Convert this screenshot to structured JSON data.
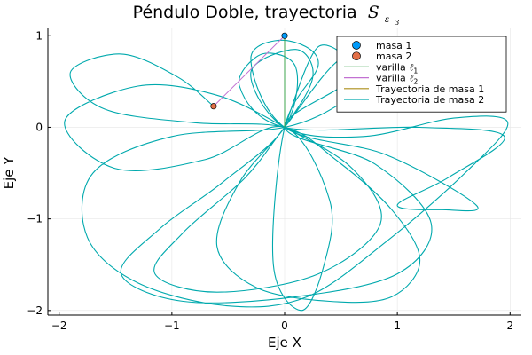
{
  "chart_data": {
    "type": "line",
    "title": "Péndulo Doble, trayectoria",
    "title_math": {
      "symbol": "S",
      "subscript": "ε",
      "subsubscript": "3"
    },
    "xlabel": "Eje X",
    "ylabel": "Eje Y",
    "xlim": [
      -2.1,
      2.1
    ],
    "ylim": [
      -2.05,
      1.08
    ],
    "xticks": [
      -2,
      -1,
      0,
      1,
      2
    ],
    "yticks": [
      -2,
      -1,
      0,
      1
    ],
    "xtick_labels": [
      "−2",
      "−1",
      "0",
      "1",
      "2"
    ],
    "ytick_labels": [
      "−2",
      "−1",
      "0",
      "1"
    ],
    "grid": true,
    "legend_position": "top-right",
    "legend": [
      {
        "key": "m1",
        "label": "masa 1",
        "kind": "marker"
      },
      {
        "key": "m2",
        "label": "masa 2",
        "kind": "marker"
      },
      {
        "key": "l1",
        "label": "varilla",
        "math": "ℓ",
        "sub": "1",
        "kind": "line"
      },
      {
        "key": "l2",
        "label": "varilla",
        "math": "ℓ",
        "sub": "2",
        "kind": "line"
      },
      {
        "key": "t1",
        "label": "Trayectoria de masa 1",
        "kind": "line"
      },
      {
        "key": "t2",
        "label": "Trayectoria de masa 2",
        "kind": "line"
      }
    ],
    "colors": {
      "m1": "#009AFA",
      "m2": "#E36F47",
      "l1": "#3EA44E",
      "l2": "#C271D2",
      "t1": "#AC8D18",
      "t2": "#00A9AD"
    },
    "masa1": {
      "x": 0.0,
      "y": 1.0
    },
    "masa2": {
      "x": -0.63,
      "y": 0.23
    },
    "varilla1": [
      {
        "x": 0.0,
        "y": 0.0
      },
      {
        "x": 0.0,
        "y": 1.0
      }
    ],
    "varilla2": [
      {
        "x": 0.0,
        "y": 1.0
      },
      {
        "x": -0.63,
        "y": 0.23
      }
    ],
    "trayectoria1": [
      {
        "x": 0.0,
        "y": 1.0
      },
      {
        "x": 0.0,
        "y": 0.95
      }
    ],
    "trayectoria2": [
      {
        "x": -0.63,
        "y": 0.23
      },
      {
        "x": -0.95,
        "y": 0.55
      },
      {
        "x": -1.45,
        "y": 0.8
      },
      {
        "x": -1.9,
        "y": 0.6
      },
      {
        "x": -1.6,
        "y": 0.2
      },
      {
        "x": -0.8,
        "y": 0.05
      },
      {
        "x": 0.0,
        "y": 0.0
      },
      {
        "x": 0.45,
        "y": -0.35
      },
      {
        "x": 0.95,
        "y": -0.9
      },
      {
        "x": 1.2,
        "y": -1.45
      },
      {
        "x": 0.95,
        "y": -1.85
      },
      {
        "x": 0.4,
        "y": -1.9
      },
      {
        "x": -0.25,
        "y": -1.75
      },
      {
        "x": -0.6,
        "y": -1.3
      },
      {
        "x": -0.4,
        "y": -0.6
      },
      {
        "x": 0.0,
        "y": 0.0
      },
      {
        "x": 0.25,
        "y": 0.55
      },
      {
        "x": 0.1,
        "y": 0.85
      },
      {
        "x": -0.3,
        "y": 0.6
      },
      {
        "x": 0.0,
        "y": 0.0
      },
      {
        "x": 0.7,
        "y": -0.1
      },
      {
        "x": 1.5,
        "y": 0.1
      },
      {
        "x": 1.98,
        "y": 0.05
      },
      {
        "x": 1.6,
        "y": -0.5
      },
      {
        "x": 0.9,
        "y": -1.25
      },
      {
        "x": 0.2,
        "y": -1.85
      },
      {
        "x": -0.5,
        "y": -1.95
      },
      {
        "x": -1.3,
        "y": -1.7
      },
      {
        "x": -1.75,
        "y": -1.2
      },
      {
        "x": -1.7,
        "y": -0.5
      },
      {
        "x": -1.0,
        "y": -0.1
      },
      {
        "x": 0.0,
        "y": 0.0
      },
      {
        "x": 0.55,
        "y": 0.3
      },
      {
        "x": 0.85,
        "y": 0.65
      },
      {
        "x": 0.5,
        "y": 0.75
      },
      {
        "x": 0.0,
        "y": 0.0
      },
      {
        "x": -0.35,
        "y": -0.55
      },
      {
        "x": -0.9,
        "y": -1.15
      },
      {
        "x": -1.15,
        "y": -1.6
      },
      {
        "x": -0.6,
        "y": -1.8
      },
      {
        "x": 0.3,
        "y": -1.6
      },
      {
        "x": 0.85,
        "y": -1.05
      },
      {
        "x": 0.6,
        "y": -0.45
      },
      {
        "x": 0.0,
        "y": 0.0
      },
      {
        "x": -0.6,
        "y": 0.35
      },
      {
        "x": -1.3,
        "y": 0.45
      },
      {
        "x": -1.95,
        "y": 0.07
      },
      {
        "x": -1.5,
        "y": -0.45
      },
      {
        "x": -0.7,
        "y": -0.35
      },
      {
        "x": 0.0,
        "y": 0.0
      },
      {
        "x": 0.4,
        "y": -0.8
      },
      {
        "x": 0.35,
        "y": -1.5
      },
      {
        "x": 0.15,
        "y": -2.0
      },
      {
        "x": -0.1,
        "y": -1.5
      },
      {
        "x": 0.0,
        "y": 0.0
      },
      {
        "x": 0.3,
        "y": 0.7
      },
      {
        "x": 0.0,
        "y": 0.95
      },
      {
        "x": -0.3,
        "y": 0.75
      },
      {
        "x": 0.0,
        "y": 0.0
      },
      {
        "x": 0.9,
        "y": -0.3
      },
      {
        "x": 1.7,
        "y": -0.85
      },
      {
        "x": 1.4,
        "y": -0.9
      },
      {
        "x": 1.0,
        "y": -0.85
      },
      {
        "x": 1.45,
        "y": -0.55
      },
      {
        "x": 1.95,
        "y": -0.1
      },
      {
        "x": 1.2,
        "y": 0.0
      },
      {
        "x": 0.0,
        "y": 0.0
      },
      {
        "x": -0.4,
        "y": 0.45
      },
      {
        "x": -0.2,
        "y": 0.8
      },
      {
        "x": 0.1,
        "y": 0.65
      },
      {
        "x": 0.0,
        "y": 0.0
      },
      {
        "x": -0.55,
        "y": -0.6
      },
      {
        "x": -1.1,
        "y": -1.1
      },
      {
        "x": -1.45,
        "y": -1.6
      },
      {
        "x": -0.9,
        "y": -1.9
      },
      {
        "x": 0.1,
        "y": -1.85
      },
      {
        "x": 1.0,
        "y": -1.6
      },
      {
        "x": 1.3,
        "y": -1.05
      },
      {
        "x": 0.8,
        "y": -0.4
      },
      {
        "x": 0.0,
        "y": 0.0
      },
      {
        "x": 0.6,
        "y": 0.55
      },
      {
        "x": 0.3,
        "y": 0.88
      },
      {
        "x": 0.0,
        "y": 0.0
      }
    ]
  }
}
